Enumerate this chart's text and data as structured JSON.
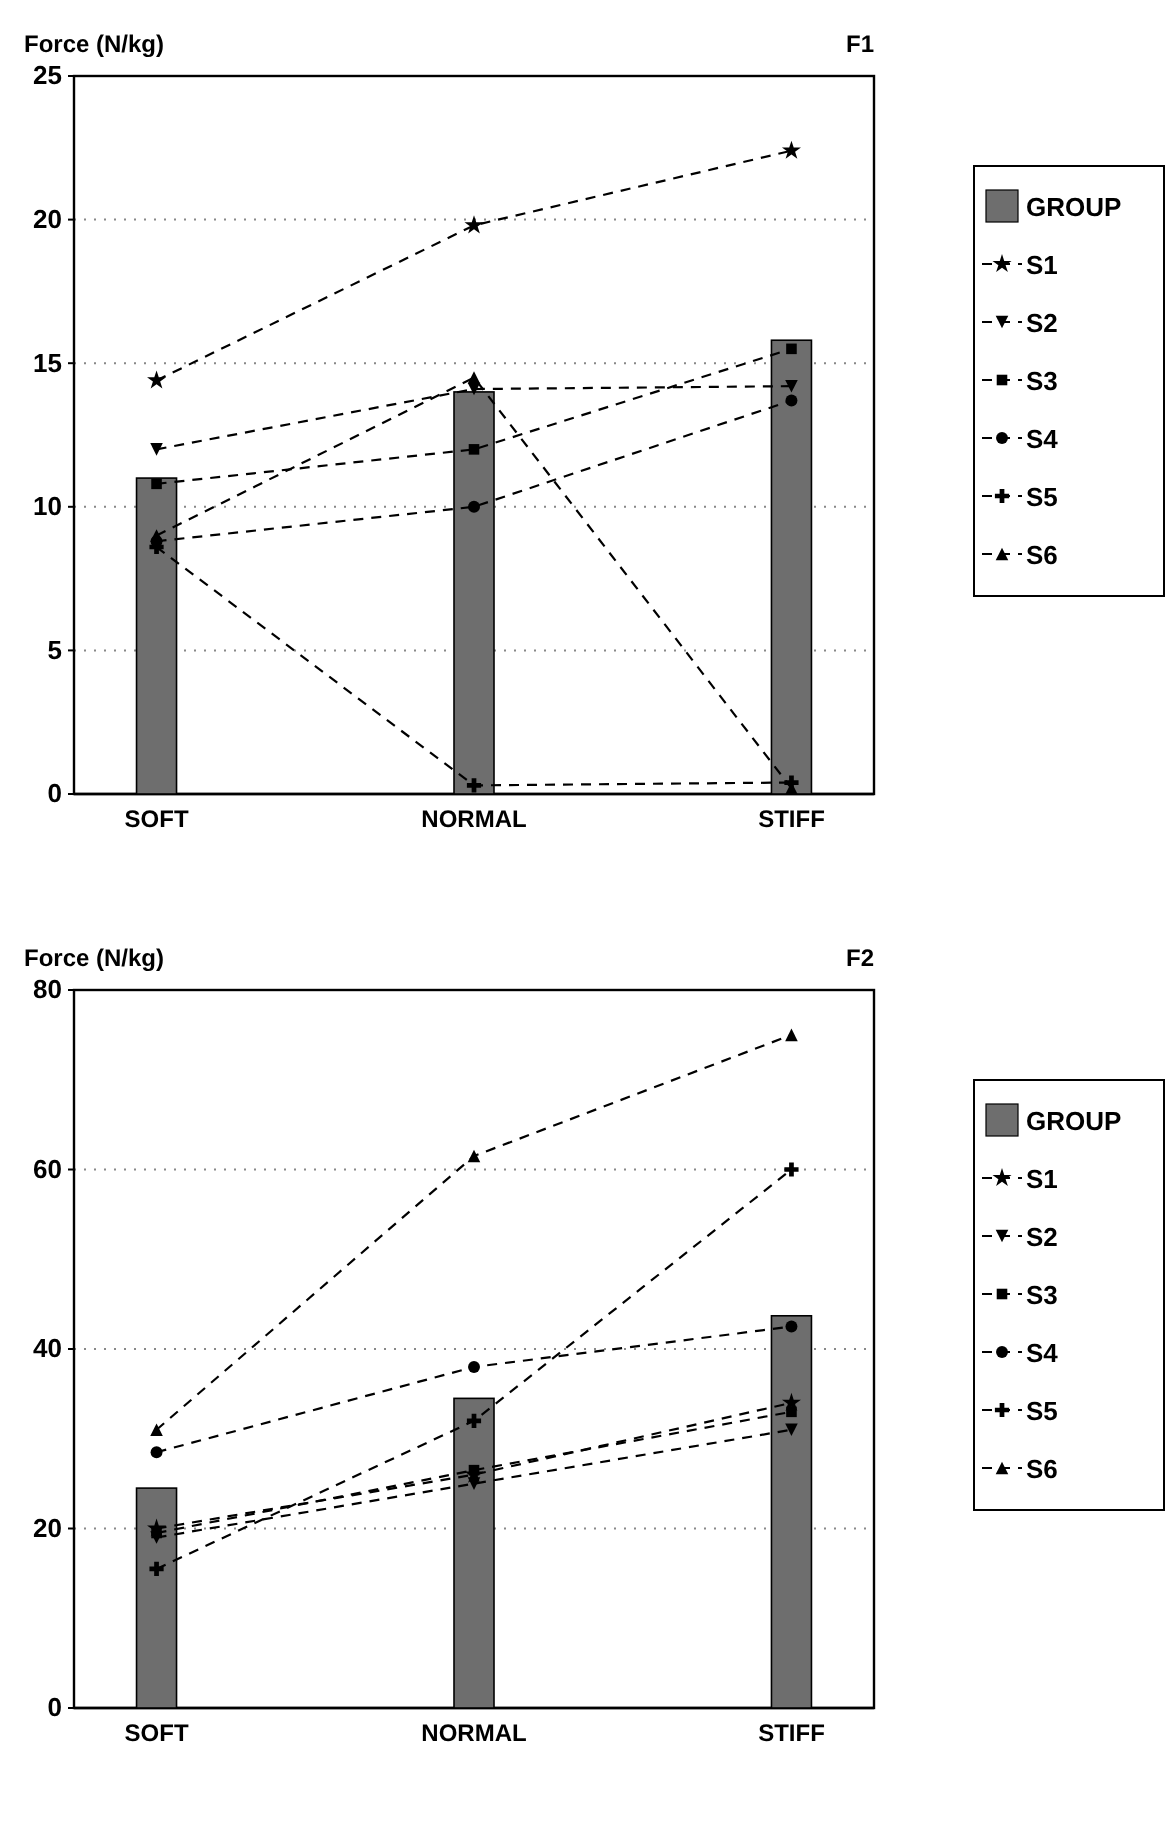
{
  "chart_data": [
    {
      "type": "bar",
      "title": "F1",
      "ylabel": "Force (N/kg)",
      "categories": [
        "SOFT",
        "NORMAL",
        "STIFF"
      ],
      "ylim": [
        0,
        25
      ],
      "yticks": [
        0,
        5,
        10,
        15,
        20,
        25
      ],
      "grid": "y",
      "legend": "right",
      "line_style": "dashed",
      "series": [
        {
          "name": "GROUP",
          "color": "#6e6e6e",
          "values": [
            11,
            14,
            15.8
          ]
        },
        {
          "name": "S1",
          "type": "line",
          "color": "#000000",
          "marker": "star",
          "values": [
            14.4,
            19.8,
            22.4
          ]
        },
        {
          "name": "S2",
          "type": "line",
          "color": "#000000",
          "marker": "triangle-down",
          "values": [
            12,
            14.1,
            14.2
          ]
        },
        {
          "name": "S3",
          "type": "line",
          "color": "#000000",
          "marker": "square",
          "values": [
            10.8,
            12,
            15.5
          ]
        },
        {
          "name": "S4",
          "type": "line",
          "color": "#000000",
          "marker": "circle",
          "values": [
            8.8,
            10,
            13.7
          ]
        },
        {
          "name": "S5",
          "type": "line",
          "color": "#000000",
          "marker": "cross",
          "values": [
            8.6,
            0.3,
            0.4
          ]
        },
        {
          "name": "S6",
          "type": "line",
          "color": "#000000",
          "marker": "triangle",
          "values": [
            9,
            14.5,
            0.2
          ]
        }
      ]
    },
    {
      "type": "bar",
      "title": "F2",
      "ylabel": "Force (N/kg)",
      "categories": [
        "SOFT",
        "NORMAL",
        "STIFF"
      ],
      "ylim": [
        0,
        80
      ],
      "yticks": [
        0,
        20,
        40,
        60,
        80
      ],
      "grid": "y",
      "legend": "right",
      "line_style": "dashed",
      "series": [
        {
          "name": "GROUP",
          "color": "#6e6e6e",
          "values": [
            24.5,
            34.5,
            43.7
          ]
        },
        {
          "name": "S1",
          "type": "line",
          "color": "#000000",
          "marker": "star",
          "values": [
            20,
            26,
            34
          ]
        },
        {
          "name": "S2",
          "type": "line",
          "color": "#000000",
          "marker": "triangle-down",
          "values": [
            19,
            25,
            31
          ]
        },
        {
          "name": "S3",
          "type": "line",
          "color": "#000000",
          "marker": "square",
          "values": [
            19.5,
            26.5,
            33
          ]
        },
        {
          "name": "S4",
          "type": "line",
          "color": "#000000",
          "marker": "circle",
          "values": [
            28.5,
            38,
            42.5
          ]
        },
        {
          "name": "S5",
          "type": "line",
          "color": "#000000",
          "marker": "cross",
          "values": [
            15.5,
            32,
            60
          ]
        },
        {
          "name": "S6",
          "type": "line",
          "color": "#000000",
          "marker": "triangle",
          "values": [
            31,
            61.5,
            75
          ]
        }
      ]
    }
  ]
}
